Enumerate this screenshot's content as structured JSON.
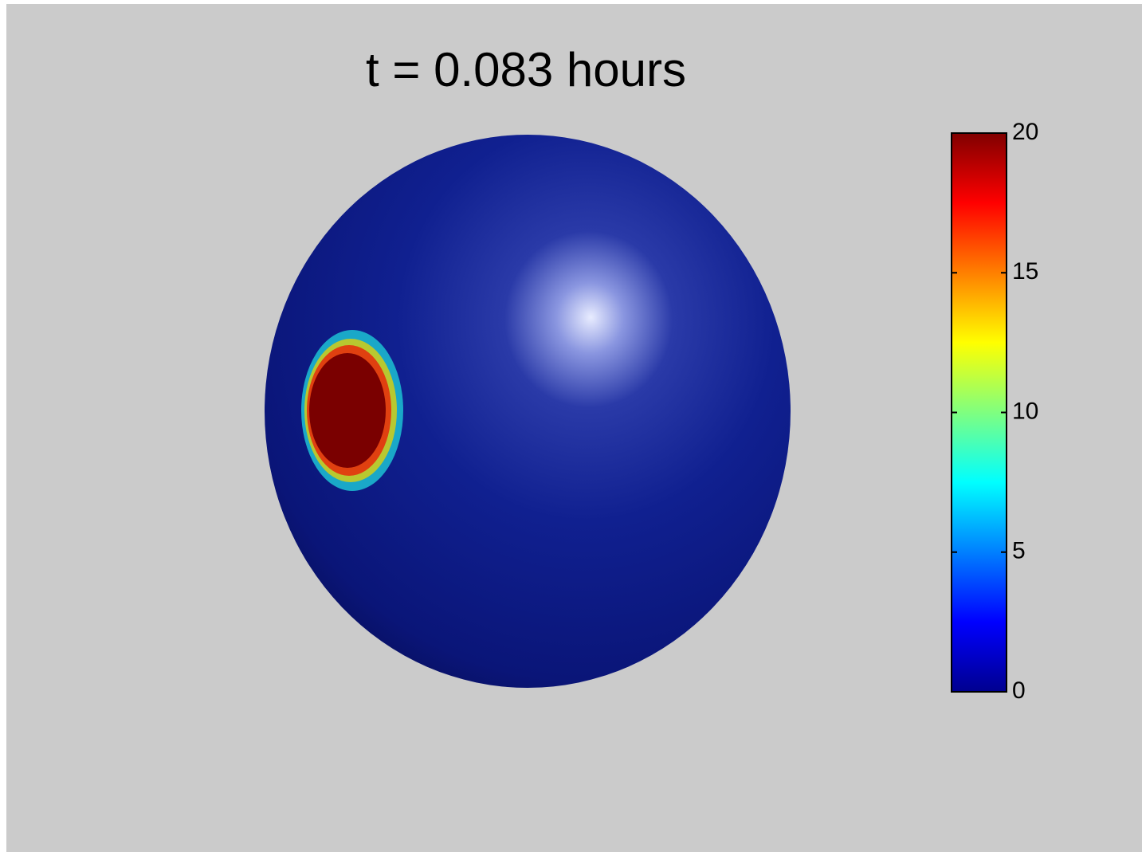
{
  "chart_data": {
    "type": "surface",
    "title": "t = 0.083 hours",
    "colormap": "jet",
    "clim": [
      0,
      20
    ],
    "cticks": [
      0,
      5,
      10,
      15,
      20
    ]
  }
}
